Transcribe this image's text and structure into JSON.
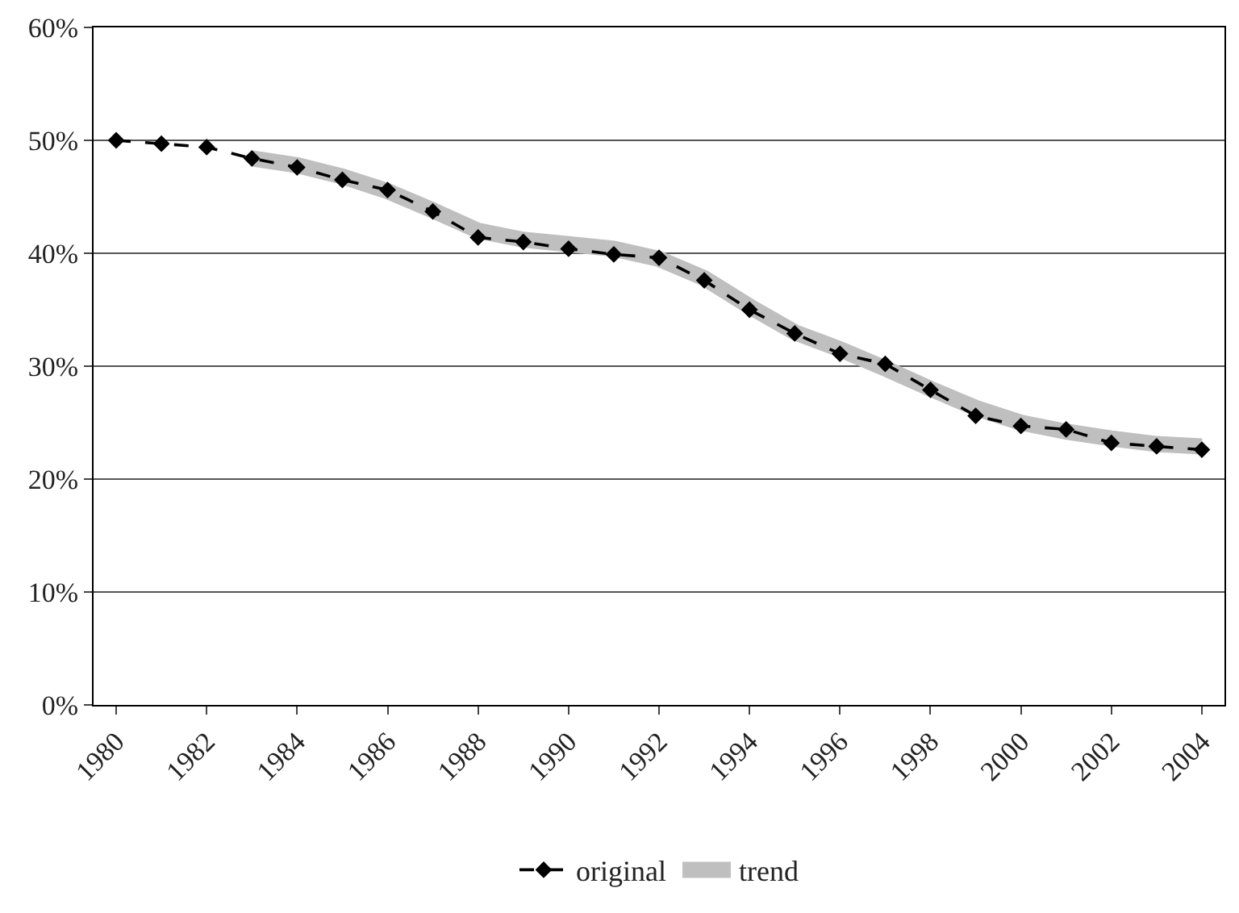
{
  "chart_data": {
    "type": "line",
    "categories": [
      "1980",
      null,
      "1982",
      null,
      "1984",
      null,
      "1986",
      null,
      "1988",
      null,
      "1990",
      null,
      "1992",
      null,
      "1994",
      null,
      "1996",
      null,
      "1998",
      null,
      "2000",
      null,
      "2002",
      null,
      "2004"
    ],
    "series": [
      {
        "name": "original",
        "color": "#000000",
        "marker": "diamond",
        "line_style": "dashed",
        "values": [
          50.0,
          49.7,
          49.4,
          48.4,
          47.6,
          46.5,
          45.6,
          43.7,
          41.4,
          41.0,
          40.4,
          39.9,
          39.6,
          37.6,
          35.0,
          32.9,
          31.1,
          30.2,
          27.9,
          25.6,
          24.7,
          24.4,
          23.2,
          22.9,
          22.6
        ]
      },
      {
        "name": "trend",
        "color": "#bfbfbf",
        "marker": "none",
        "line_style": "solid",
        "values": [
          null,
          null,
          null,
          48.4,
          47.8,
          46.8,
          45.5,
          43.8,
          42.0,
          41.2,
          40.8,
          40.4,
          39.5,
          37.8,
          35.3,
          33.0,
          31.5,
          29.8,
          28.0,
          26.3,
          25.0,
          24.2,
          23.6,
          23.1,
          22.9
        ]
      }
    ],
    "ylim": [
      0,
      60
    ],
    "yticks": [
      {
        "value": 0,
        "label": "0%"
      },
      {
        "value": 10,
        "label": "10%"
      },
      {
        "value": 20,
        "label": "20%"
      },
      {
        "value": 30,
        "label": "30%"
      },
      {
        "value": 40,
        "label": "40%"
      },
      {
        "value": 50,
        "label": "50%"
      },
      {
        "value": 60,
        "label": "60%"
      }
    ],
    "grid": "y",
    "legend": "bottom"
  }
}
